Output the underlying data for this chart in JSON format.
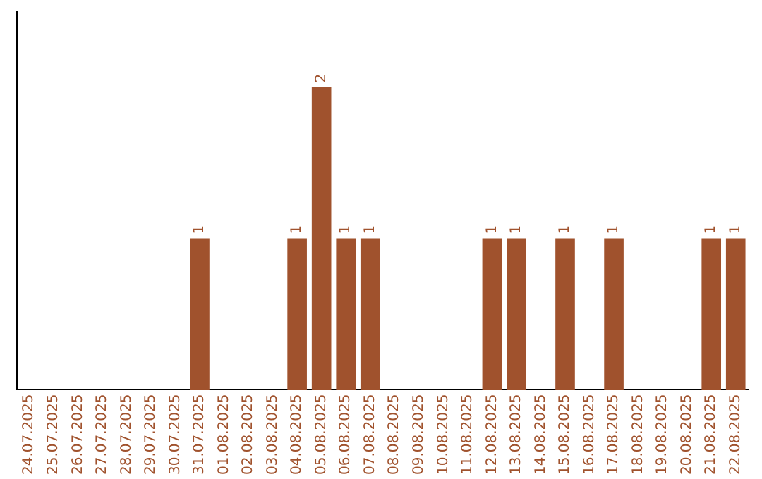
{
  "chart_data": {
    "type": "bar",
    "categories": [
      "24.07.2025",
      "25.07.2025",
      "26.07.2025",
      "27.07.2025",
      "28.07.2025",
      "29.07.2025",
      "30.07.2025",
      "31.07.2025",
      "01.08.2025",
      "02.08.2025",
      "03.08.2025",
      "04.08.2025",
      "05.08.2025",
      "06.08.2025",
      "07.08.2025",
      "08.08.2025",
      "09.08.2025",
      "10.08.2025",
      "11.08.2025",
      "12.08.2025",
      "13.08.2025",
      "14.08.2025",
      "15.08.2025",
      "16.08.2025",
      "17.08.2025",
      "18.08.2025",
      "19.08.2025",
      "20.08.2025",
      "21.08.2025",
      "22.08.2025"
    ],
    "values": [
      0,
      0,
      0,
      0,
      0,
      0,
      0,
      1,
      0,
      0,
      0,
      1,
      2,
      1,
      1,
      0,
      0,
      0,
      0,
      1,
      1,
      0,
      1,
      0,
      1,
      0,
      0,
      0,
      1,
      1
    ],
    "value_labels": [
      null,
      null,
      null,
      null,
      null,
      null,
      null,
      "1",
      null,
      null,
      null,
      "1",
      "2",
      "1",
      "1",
      null,
      null,
      null,
      null,
      "1",
      "1",
      null,
      "1",
      null,
      "1",
      null,
      null,
      null,
      "1",
      "1"
    ],
    "color": "#a0522d",
    "grid": false,
    "legend": false
  }
}
